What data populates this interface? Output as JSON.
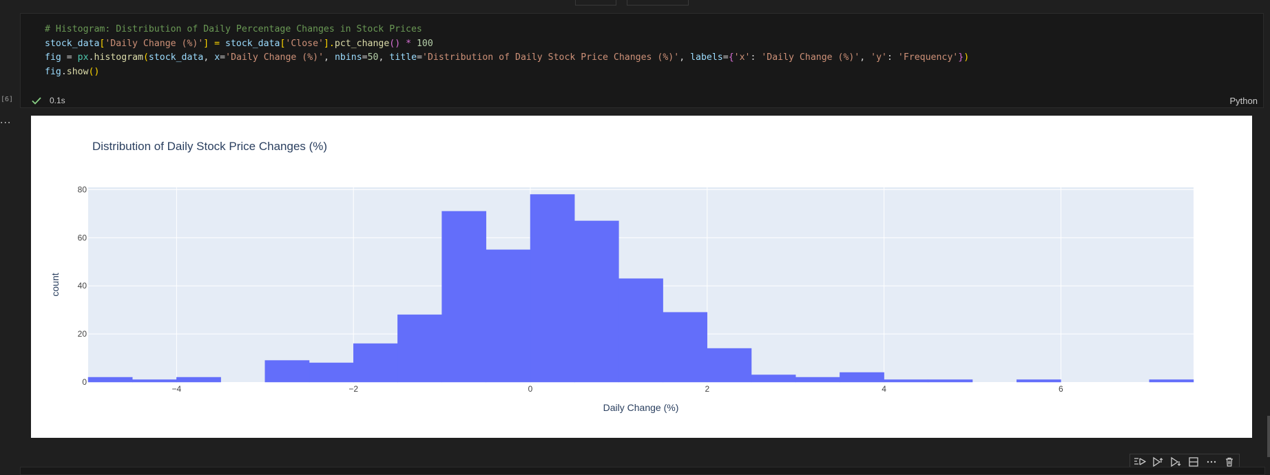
{
  "cell": {
    "execution_count": "[6]",
    "elapsed": "0.1s",
    "language": "Python",
    "more_label": "...",
    "code": {
      "line1": "# Histogram: Distribution of Daily Percentage Changes in Stock Prices",
      "line2": {
        "a": "stock_data",
        "b": "[",
        "c": "'Daily Change (%)'",
        "d": "] = ",
        "e": "stock_data",
        "f": "[",
        "g": "'Close'",
        "h": "].",
        "i": "pct_change",
        "j": "() * ",
        "k": "100"
      },
      "line3": {
        "a": "fig",
        "b": " = ",
        "c": "px",
        "d": ".",
        "e": "histogram",
        "f": "(",
        "g": "stock_data",
        "h": ", ",
        "i": "x",
        "j": "=",
        "k": "'Daily Change (%)'",
        "l": ", ",
        "m": "nbins",
        "n": "=",
        "o": "50",
        "p": ", ",
        "q": "title",
        "r": "=",
        "s": "'Distribution of Daily Stock Price Changes (%)'",
        "t": ", ",
        "u": "labels",
        "v": "=",
        "w": "{",
        "x": "'x'",
        "y": ": ",
        "z": "'Daily Change (%)'",
        "aa": ", ",
        "ab": "'y'",
        "ac": ": ",
        "ad": "'Frequency'",
        "ae": "}",
        "af": ")"
      },
      "line4": {
        "a": "fig",
        "b": ".",
        "c": "show",
        "d": "()"
      }
    }
  },
  "colors": {
    "bar": "#636efa",
    "plot_bg": "#e5ecf6",
    "text": "#2a3f5f",
    "axis_text": "#444444"
  },
  "toolbar": [
    "run-by-line-icon",
    "execute-above-icon",
    "execute-below-icon",
    "split-cell-icon",
    "more-icon",
    "delete-icon"
  ],
  "chart_data": {
    "type": "bar",
    "title": "Distribution of Daily Stock Price Changes (%)",
    "xlabel": "Daily Change (%)",
    "ylabel": "count",
    "xlim": [
      -5,
      7.5
    ],
    "ylim": [
      0,
      81
    ],
    "xticks": [
      -4,
      -2,
      0,
      2,
      4,
      6
    ],
    "xtick_labels": [
      "−4",
      "−2",
      "0",
      "2",
      "4",
      "6"
    ],
    "yticks": [
      0,
      20,
      40,
      60,
      80
    ],
    "grid": true,
    "bins": [
      {
        "x0": -5,
        "x1": -4.5,
        "value": 2
      },
      {
        "x0": -4.5,
        "x1": -4,
        "value": 1
      },
      {
        "x0": -4,
        "x1": -3.5,
        "value": 2
      },
      {
        "x0": -3,
        "x1": -2.5,
        "value": 9
      },
      {
        "x0": -2.5,
        "x1": -2,
        "value": 8
      },
      {
        "x0": -2,
        "x1": -1.5,
        "value": 16
      },
      {
        "x0": -1.5,
        "x1": -1,
        "value": 28
      },
      {
        "x0": -1,
        "x1": -0.5,
        "value": 71
      },
      {
        "x0": -0.5,
        "x1": 0,
        "value": 55
      },
      {
        "x0": 0,
        "x1": 0.5,
        "value": 78
      },
      {
        "x0": 0.5,
        "x1": 1,
        "value": 67
      },
      {
        "x0": 1,
        "x1": 1.5,
        "value": 43
      },
      {
        "x0": 1.5,
        "x1": 2,
        "value": 29
      },
      {
        "x0": 2,
        "x1": 2.5,
        "value": 14
      },
      {
        "x0": 2.5,
        "x1": 3,
        "value": 3
      },
      {
        "x0": 3,
        "x1": 3.5,
        "value": 2
      },
      {
        "x0": 3.5,
        "x1": 4,
        "value": 4
      },
      {
        "x0": 4,
        "x1": 4.5,
        "value": 1
      },
      {
        "x0": 4.5,
        "x1": 5,
        "value": 1
      },
      {
        "x0": 5.5,
        "x1": 6,
        "value": 1
      },
      {
        "x0": 7,
        "x1": 7.5,
        "value": 1
      }
    ]
  }
}
